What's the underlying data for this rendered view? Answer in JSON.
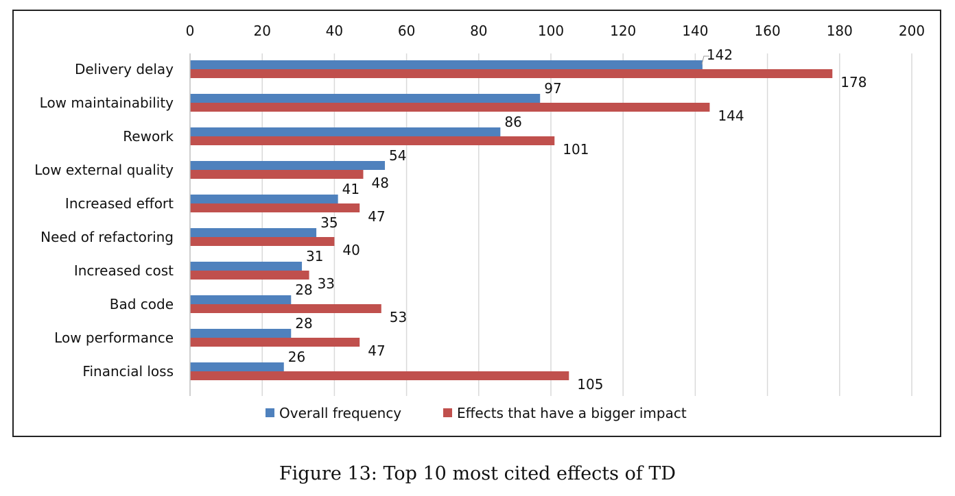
{
  "caption": "Figure 13: Top 10 most cited effects of TD",
  "chart_data": {
    "type": "bar",
    "orientation": "horizontal",
    "title": "",
    "xlabel": "",
    "ylabel": "",
    "xlim": [
      0,
      200
    ],
    "x_ticks": [
      "0",
      "20",
      "40",
      "60",
      "80",
      "100",
      "120",
      "140",
      "160",
      "180",
      "200"
    ],
    "x_axis_position": "top",
    "grid": true,
    "legend_position": "bottom",
    "categories": [
      "Delivery delay",
      "Low maintainability",
      "Rework",
      "Low external quality",
      "Increased effort",
      "Need of refactoring",
      "Increased cost",
      "Bad code",
      "Low performance",
      "Financial loss"
    ],
    "series": [
      {
        "name": "Overall frequency",
        "color": "#4f81bd",
        "values": [
          142,
          97,
          86,
          54,
          41,
          35,
          31,
          28,
          28,
          26
        ],
        "labels": [
          "142",
          "97",
          "86",
          "54",
          "41",
          "35",
          "31",
          "28",
          "28",
          "26"
        ]
      },
      {
        "name": "Effects that have a bigger impact",
        "color": "#c0504d",
        "values": [
          178,
          144,
          101,
          48,
          47,
          40,
          33,
          53,
          47,
          105
        ],
        "labels": [
          "178",
          "144",
          "101",
          "48",
          "47",
          "40",
          "33",
          "53",
          "47",
          "105"
        ]
      }
    ]
  }
}
